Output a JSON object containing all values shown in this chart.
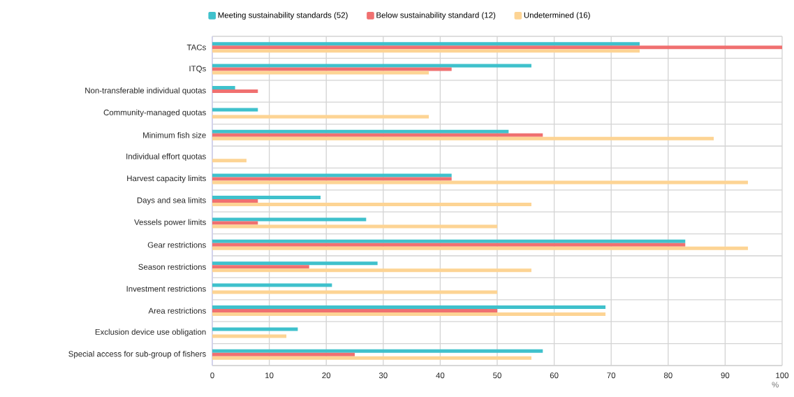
{
  "chart_data": {
    "type": "bar",
    "orientation": "horizontal",
    "xlabel": "%",
    "categories": [
      "TACs",
      "ITQs",
      "Non-transferable individual quotas",
      "Community-managed quotas",
      "Minimum fish size",
      "Individual effort quotas",
      "Harvest capacity limits",
      "Days and sea limits",
      "Vessels power limits",
      "Gear restrictions",
      "Season restrictions",
      "Investment restrictions",
      "Area restrictions",
      "Exclusion device use obligation",
      "Special access for sub-group of fishers"
    ],
    "series": [
      {
        "name": "Meeting sustainability standards (52)",
        "color": "#3fc1cc",
        "values": [
          75,
          56,
          4,
          8,
          52,
          null,
          42,
          19,
          27,
          83,
          29,
          21,
          69,
          15,
          58
        ]
      },
      {
        "name": "Below sustainability standard (12)",
        "color": "#f07070",
        "values": [
          100,
          42,
          8,
          null,
          58,
          null,
          42,
          8,
          8,
          83,
          17,
          null,
          50,
          null,
          25
        ]
      },
      {
        "name": "Undetermined (16)",
        "color": "#fdd494",
        "values": [
          75,
          38,
          null,
          38,
          88,
          6,
          94,
          56,
          50,
          94,
          56,
          50,
          69,
          13,
          56
        ]
      }
    ],
    "xlim": [
      0,
      100
    ],
    "xticks": [
      0,
      10,
      20,
      30,
      40,
      50,
      60,
      70,
      80,
      90,
      100
    ],
    "grid": true,
    "legend": "top"
  }
}
